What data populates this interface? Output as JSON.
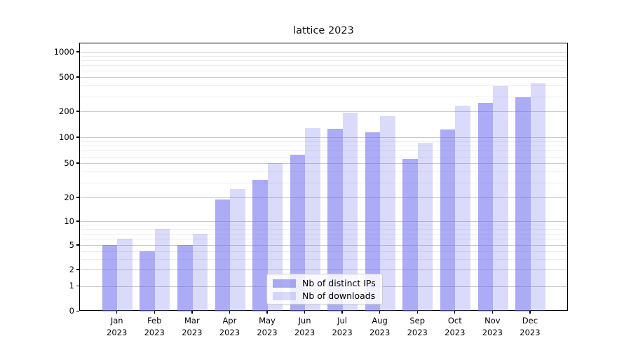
{
  "title": "lattice 2023",
  "chart_data": {
    "type": "bar",
    "title": "lattice 2023",
    "categories": [
      "Jan 2023",
      "Feb 2023",
      "Mar 2023",
      "Apr 2023",
      "May 2023",
      "Jun 2023",
      "Jul 2023",
      "Aug 2023",
      "Sep 2023",
      "Oct 2023",
      "Nov 2023",
      "Dec 2023"
    ],
    "series": [
      {
        "name": "Nb of distinct IPs",
        "values": [
          5,
          4,
          5,
          19,
          32,
          63,
          126,
          115,
          56,
          123,
          250,
          290
        ]
      },
      {
        "name": "Nb of downloads",
        "values": [
          6,
          8,
          7,
          25,
          50,
          128,
          192,
          175,
          87,
          235,
          395,
          425
        ]
      }
    ],
    "xlabel": "",
    "ylabel": "",
    "yscale": "symlog",
    "yticks": [
      0,
      1,
      2,
      5,
      10,
      20,
      50,
      100,
      200,
      500,
      1000
    ],
    "yticks_minor": [
      3,
      4,
      6,
      7,
      8,
      9,
      30,
      40,
      60,
      70,
      80,
      90,
      300,
      400,
      600,
      700,
      800,
      900
    ],
    "ylim": [
      0,
      1000
    ],
    "grid": "horizontal major+minor",
    "legend_position": "lower center"
  },
  "colors": {
    "bar_ips": "rgba(102,102,238,0.55)",
    "bar_downloads": "rgba(102,102,238,0.24)",
    "grid_major": "#c9c9c9",
    "grid_minor": "#ececec",
    "spine": "#000000"
  }
}
